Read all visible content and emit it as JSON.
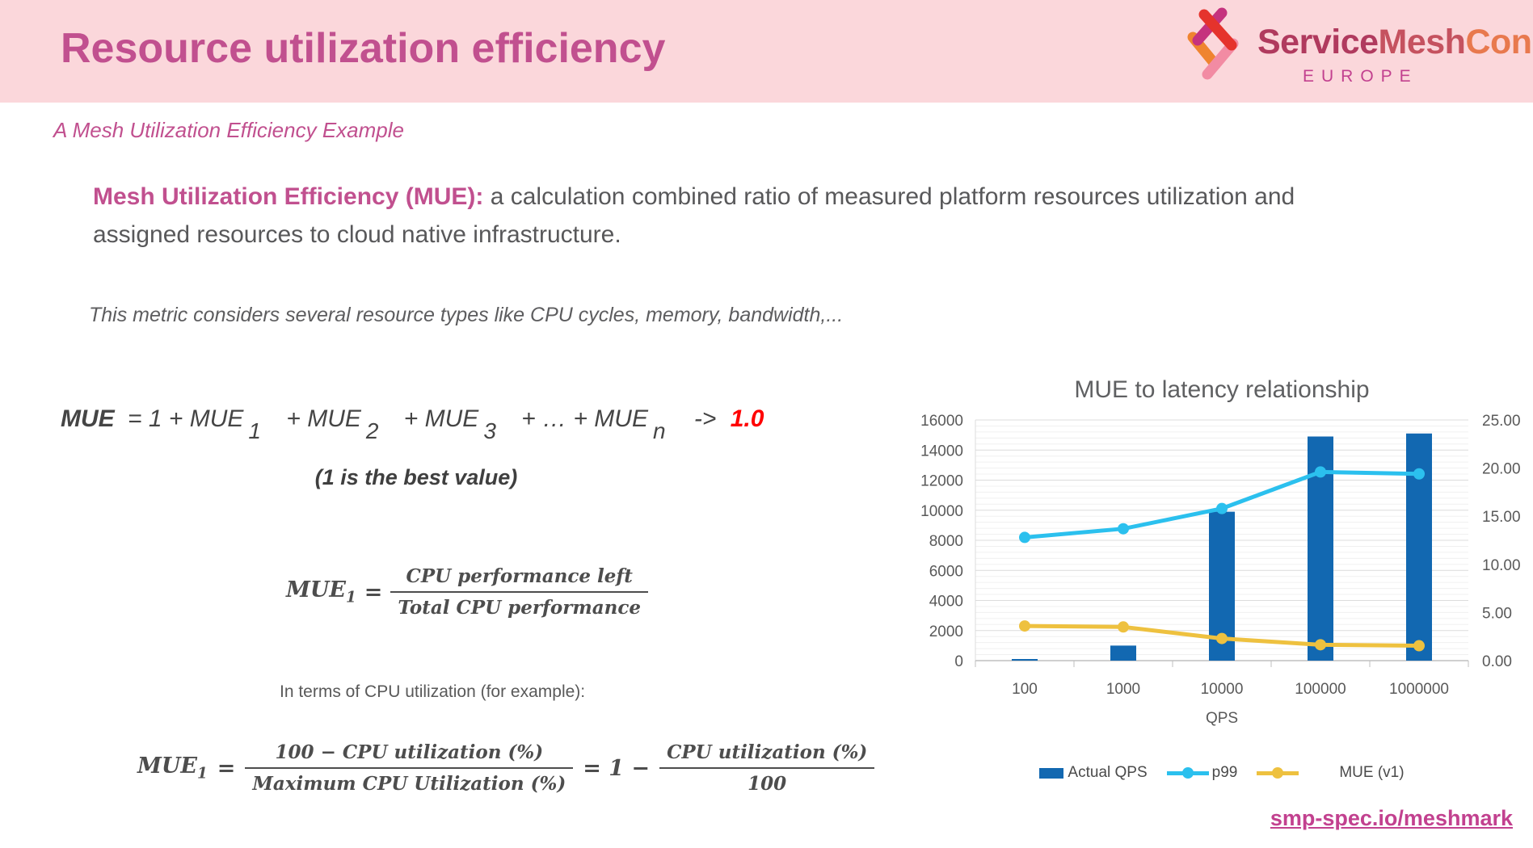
{
  "slide": {
    "title": "Resource utilization efficiency",
    "subtitle": "A Mesh Utilization Efficiency Example",
    "intro_lead": "Mesh Utilization Efficiency (MUE):",
    "intro_rest": " a calculation combined ratio of measured platform resources utilization and assigned resources to cloud native infrastructure.",
    "note": "This metric considers several resource types like CPU cycles, memory, bandwidth,...",
    "cpu_line": "In terms of CPU utilization (for example):",
    "footer_link": "smp-spec.io/meshmark"
  },
  "logo": {
    "brand_part1": "Service",
    "brand_part2": "Mesh",
    "brand_part3": "Con",
    "region": "EUROPE"
  },
  "equation": {
    "lhs": "MUE",
    "eq": "= 1 + MUE",
    "sub1": "1",
    "t2": "+ MUE",
    "sub2": "2",
    "t3": "+ MUE",
    "sub3": "3",
    "t4": "+ … + MUE",
    "subn": "n",
    "arrow": "->",
    "target": "1.0",
    "caption": "(1 is the best value)"
  },
  "formula1": {
    "lhs": "MUE",
    "lhs_sub": "1",
    "equals": "=",
    "numerator": "CPU performance left",
    "denominator": "Total CPU performance"
  },
  "formula2": {
    "lhs": "MUE",
    "lhs_sub": "1",
    "equals": "=",
    "numerator1": "100 − CPU utilization (%)",
    "denominator1": "Maximum CPU Utilization (%)",
    "middle": "= 1 −",
    "numerator2": "CPU utilization (%)",
    "denominator2": "100"
  },
  "chart_data": {
    "type": "bar+line combo",
    "title": "MUE to latency relationship",
    "xlabel": "QPS",
    "categories": [
      "100",
      "1000",
      "10000",
      "100000",
      "1000000"
    ],
    "left_axis": {
      "min": 0,
      "max": 16000,
      "tick_step": 2000,
      "minor_step": 400,
      "ticks": [
        "0",
        "2000",
        "4000",
        "6000",
        "8000",
        "10000",
        "12000",
        "14000",
        "16000"
      ]
    },
    "right_axis": {
      "min": 0,
      "max": 25,
      "tick_step": 5,
      "ticks": [
        "0.00",
        "5.00",
        "10.00",
        "15.00",
        "20.00",
        "25.00"
      ]
    },
    "series": [
      {
        "name": "Actual QPS",
        "type": "bar",
        "axis": "left",
        "color": "#1268b1",
        "values": [
          100,
          1000,
          9900,
          14900,
          15100
        ]
      },
      {
        "name": "p99",
        "type": "line",
        "axis": "right",
        "color": "#2bc0ee",
        "values": [
          12.8,
          13.7,
          15.8,
          19.6,
          19.4
        ]
      },
      {
        "name": "MUE (v1)",
        "type": "line",
        "axis": "right",
        "color": "#eec13f",
        "values": [
          3.6,
          3.5,
          2.3,
          1.65,
          1.55
        ]
      }
    ],
    "legend_position": "bottom",
    "grid": true
  },
  "colors": {
    "banner_bg": "#fbd7db",
    "accent_pink": "#c1508f",
    "body_gray": "#58585a",
    "formula_gray": "#454545",
    "red": "#ff0000",
    "bar_blue": "#1268b1",
    "line_cyan": "#2bc0ee",
    "line_yellow": "#eec13f",
    "grid_minor": "#f0f0f0",
    "grid_major": "#dcdcdc",
    "axis_line": "#bfbfbf",
    "logo_colors": [
      "#c5327e",
      "#e5332c",
      "#ef8430",
      "#f28ba3"
    ]
  }
}
